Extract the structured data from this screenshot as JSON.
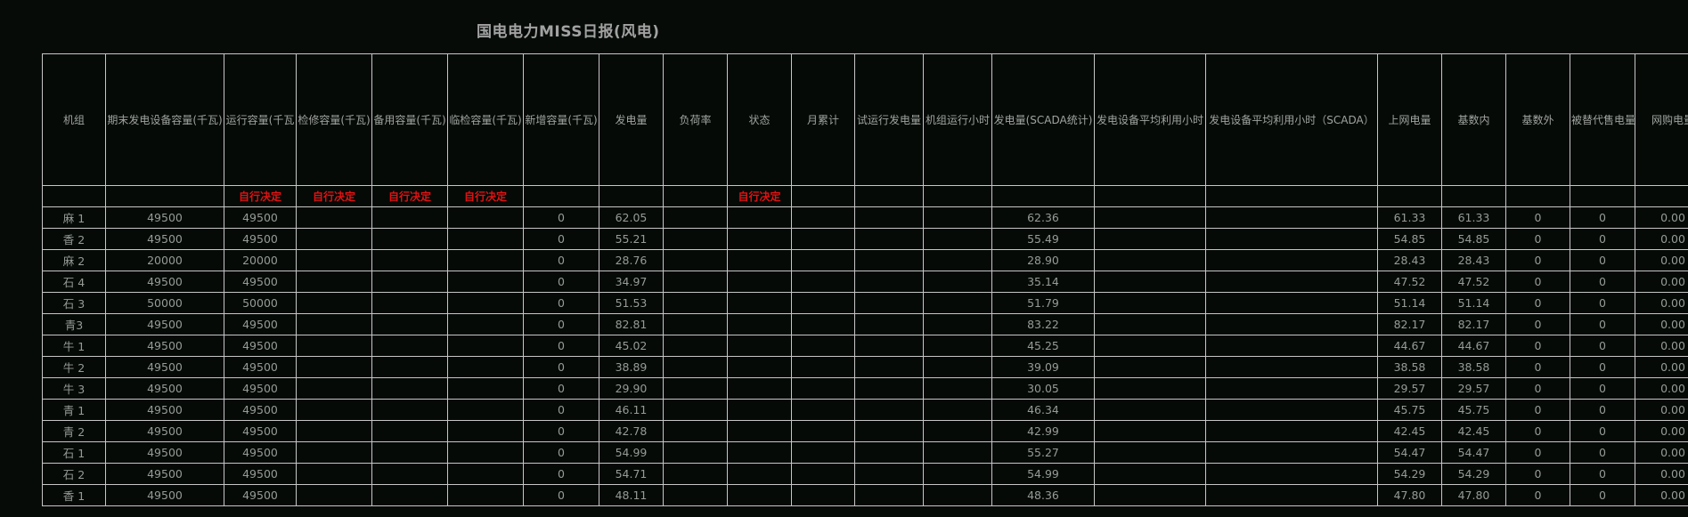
{
  "title": "国电电力MISS日报(风电)",
  "colors": {
    "background": "#060b08",
    "grid_line": "#c6c6c6",
    "note_red": "#e01212",
    "text_gray": "#969b96"
  },
  "table": {
    "columns": [
      "机组",
      "期末发电设备容量(千瓦)",
      "运行容量(千瓦",
      "检修容量(千瓦)",
      "备用容量(千瓦)",
      "临检容量(千瓦)",
      "新增容量(千瓦)",
      "发电量",
      "负荷率",
      "状态",
      "月累计",
      "试运行发电量",
      "机组运行小时",
      "发电量(SCADA统计)",
      "发电设备平均利用小时",
      "发电设备平均利用小时（SCADA）",
      "上网电量",
      "基数内",
      "基数外",
      "被替代售电量",
      "网购电量"
    ],
    "subheader": [
      "",
      "",
      "自行决定",
      "自行决定",
      "自行决定",
      "自行决定",
      "",
      "",
      "",
      "自行决定",
      "",
      "",
      "",
      "",
      "",
      "",
      "",
      "",
      "",
      "",
      ""
    ],
    "rows": [
      [
        "麻 1",
        "49500",
        "49500",
        "",
        "",
        "",
        "0",
        "62.05",
        "",
        "",
        "",
        "",
        "",
        "62.36",
        "",
        "",
        "61.33",
        "61.33",
        "0",
        "0",
        "0.00"
      ],
      [
        "香 2",
        "49500",
        "49500",
        "",
        "",
        "",
        "0",
        "55.21",
        "",
        "",
        "",
        "",
        "",
        "55.49",
        "",
        "",
        "54.85",
        "54.85",
        "0",
        "0",
        "0.00"
      ],
      [
        "麻 2",
        "20000",
        "20000",
        "",
        "",
        "",
        "0",
        "28.76",
        "",
        "",
        "",
        "",
        "",
        "28.90",
        "",
        "",
        "28.43",
        "28.43",
        "0",
        "0",
        "0.00"
      ],
      [
        "石 4",
        "49500",
        "49500",
        "",
        "",
        "",
        "0",
        "34.97",
        "",
        "",
        "",
        "",
        "",
        "35.14",
        "",
        "",
        "47.52",
        "47.52",
        "0",
        "0",
        "0.00"
      ],
      [
        "石 3",
        "50000",
        "50000",
        "",
        "",
        "",
        "0",
        "51.53",
        "",
        "",
        "",
        "",
        "",
        "51.79",
        "",
        "",
        "51.14",
        "51.14",
        "0",
        "0",
        "0.00"
      ],
      [
        "青3",
        "49500",
        "49500",
        "",
        "",
        "",
        "0",
        "82.81",
        "",
        "",
        "",
        "",
        "",
        "83.22",
        "",
        "",
        "82.17",
        "82.17",
        "0",
        "0",
        "0.00"
      ],
      [
        "牛 1",
        "49500",
        "49500",
        "",
        "",
        "",
        "0",
        "45.02",
        "",
        "",
        "",
        "",
        "",
        "45.25",
        "",
        "",
        "44.67",
        "44.67",
        "0",
        "0",
        "0.00"
      ],
      [
        "牛 2",
        "49500",
        "49500",
        "",
        "",
        "",
        "0",
        "38.89",
        "",
        "",
        "",
        "",
        "",
        "39.09",
        "",
        "",
        "38.58",
        "38.58",
        "0",
        "0",
        "0.00"
      ],
      [
        "牛 3",
        "49500",
        "49500",
        "",
        "",
        "",
        "0",
        "29.90",
        "",
        "",
        "",
        "",
        "",
        "30.05",
        "",
        "",
        "29.57",
        "29.57",
        "0",
        "0",
        "0.00"
      ],
      [
        "青 1",
        "49500",
        "49500",
        "",
        "",
        "",
        "0",
        "46.11",
        "",
        "",
        "",
        "",
        "",
        "46.34",
        "",
        "",
        "45.75",
        "45.75",
        "0",
        "0",
        "0.00"
      ],
      [
        "青 2",
        "49500",
        "49500",
        "",
        "",
        "",
        "0",
        "42.78",
        "",
        "",
        "",
        "",
        "",
        "42.99",
        "",
        "",
        "42.45",
        "42.45",
        "0",
        "0",
        "0.00"
      ],
      [
        "石 1",
        "49500",
        "49500",
        "",
        "",
        "",
        "0",
        "54.99",
        "",
        "",
        "",
        "",
        "",
        "55.27",
        "",
        "",
        "54.47",
        "54.47",
        "0",
        "0",
        "0.00"
      ],
      [
        "石 2",
        "49500",
        "49500",
        "",
        "",
        "",
        "0",
        "54.71",
        "",
        "",
        "",
        "",
        "",
        "54.99",
        "",
        "",
        "54.29",
        "54.29",
        "0",
        "0",
        "0.00"
      ],
      [
        "香 1",
        "49500",
        "49500",
        "",
        "",
        "",
        "0",
        "48.11",
        "",
        "",
        "",
        "",
        "",
        "48.36",
        "",
        "",
        "47.80",
        "47.80",
        "0",
        "0",
        "0.00"
      ]
    ]
  }
}
